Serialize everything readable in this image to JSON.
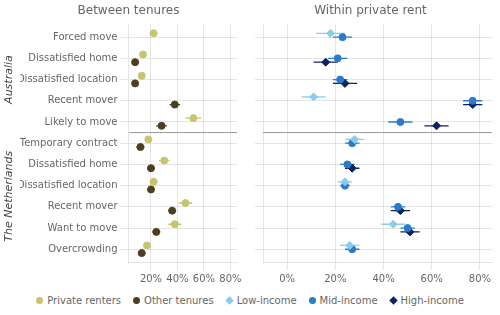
{
  "chart_data": [
    {
      "type": "scatter",
      "title": "Between tenures",
      "categories": [
        "Forced move",
        "Dissatisfied home",
        "Dissatisfied location",
        "Recent mover",
        "Likely to move",
        "Temporary contract",
        "Dissatisfied home",
        "Dissatisfied location",
        "Recent mover",
        "Want to move",
        "Overcrowding"
      ],
      "annotations": [
        {
          "text": "Australia",
          "from": 0,
          "to": 4
        },
        {
          "text": "The Netherlands",
          "from": 5,
          "to": 10
        }
      ],
      "xlim": [
        0.03,
        0.85
      ],
      "xticks": [
        {
          "value": 0.2,
          "label": "20%"
        },
        {
          "value": 0.4,
          "label": "40%"
        },
        {
          "value": 0.6,
          "label": "60%"
        },
        {
          "value": 0.8,
          "label": "80%"
        }
      ],
      "grid": true,
      "legend": "bottom",
      "orientation": "horizontal",
      "series": [
        {
          "name": "Private renters",
          "color": "#c8c46e",
          "marker": "circle",
          "values": [
            0.22,
            0.14,
            0.13,
            null,
            0.52,
            0.18,
            0.3,
            0.22,
            0.46,
            0.38,
            0.17
          ],
          "lower": [
            0.19,
            0.12,
            0.11,
            null,
            0.46,
            0.15,
            0.26,
            0.19,
            0.41,
            0.33,
            0.14
          ],
          "upper": [
            0.25,
            0.16,
            0.15,
            null,
            0.58,
            0.21,
            0.34,
            0.25,
            0.51,
            0.43,
            0.2
          ]
        },
        {
          "name": "Other tenures",
          "color": "#4a3f1e",
          "marker": "circle",
          "values": [
            null,
            0.08,
            0.08,
            0.38,
            0.28,
            0.12,
            0.2,
            0.2,
            0.36,
            0.24,
            0.13
          ],
          "lower": [
            null,
            0.06,
            0.06,
            0.34,
            0.24,
            0.09,
            0.17,
            0.18,
            0.33,
            0.21,
            0.1
          ],
          "upper": [
            null,
            0.1,
            0.1,
            0.42,
            0.32,
            0.15,
            0.23,
            0.22,
            0.39,
            0.27,
            0.16
          ]
        }
      ]
    },
    {
      "type": "scatter",
      "title": "Within private rent",
      "categories": [
        "Forced move",
        "Dissatisfied home",
        "Dissatisfied location",
        "Recent mover",
        "Likely to move",
        "Temporary contract",
        "Dissatisfied home",
        "Dissatisfied location",
        "Recent mover",
        "Want to move",
        "Overcrowding"
      ],
      "tick_labels": "x",
      "xlim": [
        -0.1,
        0.85
      ],
      "xticks": [
        {
          "value": 0,
          "label": "0%"
        },
        {
          "value": 0.2,
          "label": "20%"
        },
        {
          "value": 0.4,
          "label": "40%"
        },
        {
          "value": 0.6,
          "label": "60%"
        },
        {
          "value": 0.8,
          "label": "80%"
        }
      ],
      "grid": true,
      "legend": "bottom",
      "orientation": "horizontal",
      "series": [
        {
          "name": "Low-income",
          "color": "#87ceeb",
          "marker": "diamond",
          "values": [
            0.18,
            null,
            null,
            0.11,
            null,
            0.28,
            null,
            0.24,
            null,
            0.44,
            0.26
          ],
          "lower": [
            0.12,
            null,
            null,
            0.06,
            null,
            0.24,
            null,
            0.21,
            null,
            0.39,
            0.22
          ],
          "upper": [
            0.24,
            null,
            null,
            0.16,
            null,
            0.32,
            null,
            0.27,
            null,
            0.49,
            0.3
          ]
        },
        {
          "name": "Mid-income",
          "color": "#2b7bca",
          "marker": "circle",
          "values": [
            0.23,
            0.21,
            0.22,
            0.77,
            0.47,
            0.27,
            0.25,
            0.24,
            0.46,
            0.5,
            0.27
          ],
          "lower": [
            0.19,
            0.17,
            0.19,
            0.73,
            0.42,
            0.24,
            0.22,
            0.22,
            0.43,
            0.47,
            0.24
          ],
          "upper": [
            0.27,
            0.25,
            0.25,
            0.81,
            0.52,
            0.3,
            0.28,
            0.26,
            0.49,
            0.53,
            0.3
          ]
        },
        {
          "name": "High-income",
          "color": "#0d2260",
          "marker": "diamond",
          "values": [
            null,
            0.16,
            0.24,
            0.77,
            0.62,
            null,
            0.27,
            null,
            0.47,
            0.51,
            null
          ],
          "lower": [
            null,
            0.11,
            0.19,
            0.73,
            0.57,
            null,
            0.24,
            null,
            0.43,
            0.47,
            null
          ],
          "upper": [
            null,
            0.21,
            0.29,
            0.81,
            0.67,
            null,
            0.3,
            null,
            0.51,
            0.55,
            null
          ]
        }
      ]
    }
  ]
}
